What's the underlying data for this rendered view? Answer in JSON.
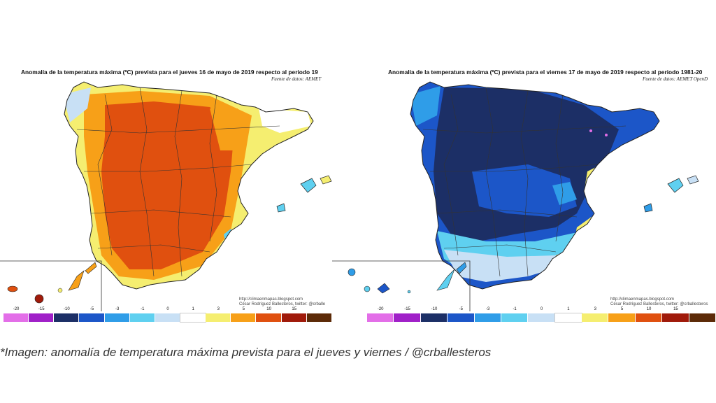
{
  "left_map": {
    "title": "Anomalía de la temperatura máxima (ºC) prevista para el jueves 16 de mayo de 2019 respecto al periodo 19",
    "source": "Fuente de datos: AEMET",
    "credit_line1": "http://climaenmapas.blogspot.com",
    "credit_line2": "César Rodríguez Ballesteros, twitter: @crballe"
  },
  "right_map": {
    "title": "Anomalía de la temperatura máxima (ºC) prevista para el viernes 17 de mayo de 2019 respecto al periodo 1981-20",
    "source": "Fuente de datos: AEMET OpenD",
    "credit_line1": "http://climaenmapas.blogspot.com",
    "credit_line2": "César Rodríguez Ballesteros, twitter: @crballesteros"
  },
  "legend": {
    "ticks": [
      "-20",
      "-15",
      "-10",
      "-5",
      "-3",
      "-1",
      "0",
      "1",
      "3",
      "5",
      "10",
      "15"
    ],
    "colors": [
      "#e36ee8",
      "#a020c8",
      "#1c2f66",
      "#1c56c8",
      "#2f9de8",
      "#5fd0f0",
      "#c8e0f5",
      "#ffffff",
      "#f5ee70",
      "#f7a018",
      "#e0500f",
      "#a01a0a",
      "#5c2a08"
    ]
  },
  "caption": "*Imagen: anomalía de temperatura máxima prevista para el jueves y viernes / @crballesteros"
}
